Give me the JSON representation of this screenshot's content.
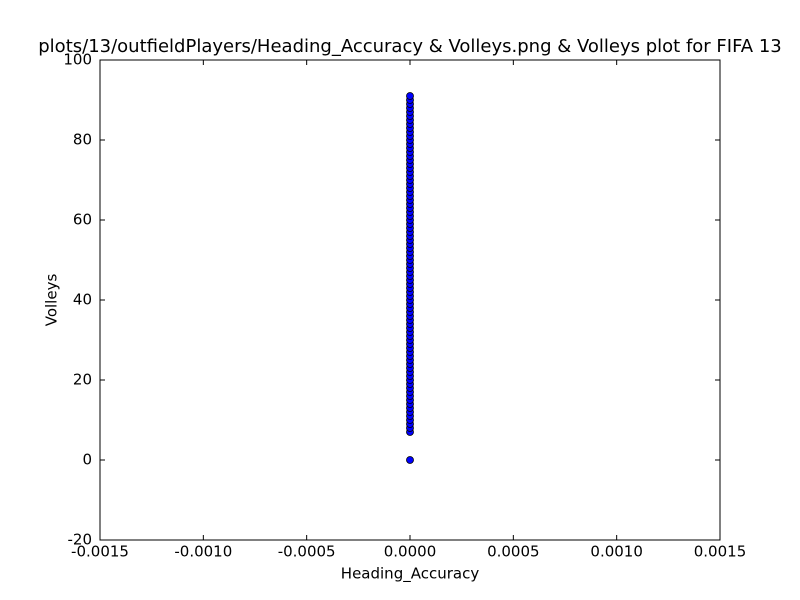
{
  "chart_data": {
    "type": "scatter",
    "title": "plots/13/outfieldPlayers/Heading_Accuracy & Volleys.png & Volleys plot for FIFA 13",
    "xlabel": "Heading_Accuracy",
    "ylabel": "Volleys",
    "color": "#0000ff",
    "x": [
      0,
      0,
      0,
      0,
      0,
      0,
      0,
      0,
      0,
      0,
      0,
      0,
      0,
      0,
      0,
      0,
      0,
      0,
      0,
      0,
      0,
      0,
      0,
      0,
      0,
      0,
      0,
      0,
      0,
      0,
      0,
      0,
      0,
      0,
      0,
      0,
      0,
      0,
      0,
      0,
      0,
      0,
      0,
      0,
      0,
      0,
      0,
      0,
      0,
      0,
      0,
      0,
      0,
      0,
      0,
      0,
      0,
      0,
      0,
      0,
      0,
      0,
      0,
      0,
      0,
      0,
      0,
      0,
      0,
      0,
      0,
      0,
      0,
      0,
      0,
      0,
      0,
      0,
      0,
      0,
      0,
      0,
      0,
      0,
      0,
      0
    ],
    "y": [
      0,
      7,
      8,
      9,
      10,
      11,
      12,
      13,
      14,
      15,
      16,
      17,
      18,
      19,
      20,
      21,
      22,
      23,
      24,
      25,
      26,
      27,
      28,
      29,
      30,
      31,
      32,
      33,
      34,
      35,
      36,
      37,
      38,
      39,
      40,
      41,
      42,
      43,
      44,
      45,
      46,
      47,
      48,
      49,
      50,
      51,
      52,
      53,
      54,
      55,
      56,
      57,
      58,
      59,
      60,
      61,
      62,
      63,
      64,
      65,
      66,
      67,
      68,
      69,
      70,
      71,
      72,
      73,
      74,
      75,
      76,
      77,
      78,
      79,
      80,
      81,
      82,
      83,
      84,
      85,
      86,
      87,
      88,
      89,
      90,
      91
    ],
    "xlim": [
      -0.0015,
      0.0015
    ],
    "xticks": [
      {
        "value": -0.0015,
        "label": "-0.0015"
      },
      {
        "value": -0.001,
        "label": "-0.0010"
      },
      {
        "value": -0.0005,
        "label": "-0.0005"
      },
      {
        "value": 0,
        "label": "0.0000"
      },
      {
        "value": 0.0005,
        "label": "0.0005"
      },
      {
        "value": 0.001,
        "label": "0.0010"
      },
      {
        "value": 0.0015,
        "label": "0.0015"
      }
    ],
    "ylim": [
      -20,
      100
    ],
    "yticks": [
      -20,
      0,
      20,
      40,
      60,
      80,
      100
    ]
  }
}
